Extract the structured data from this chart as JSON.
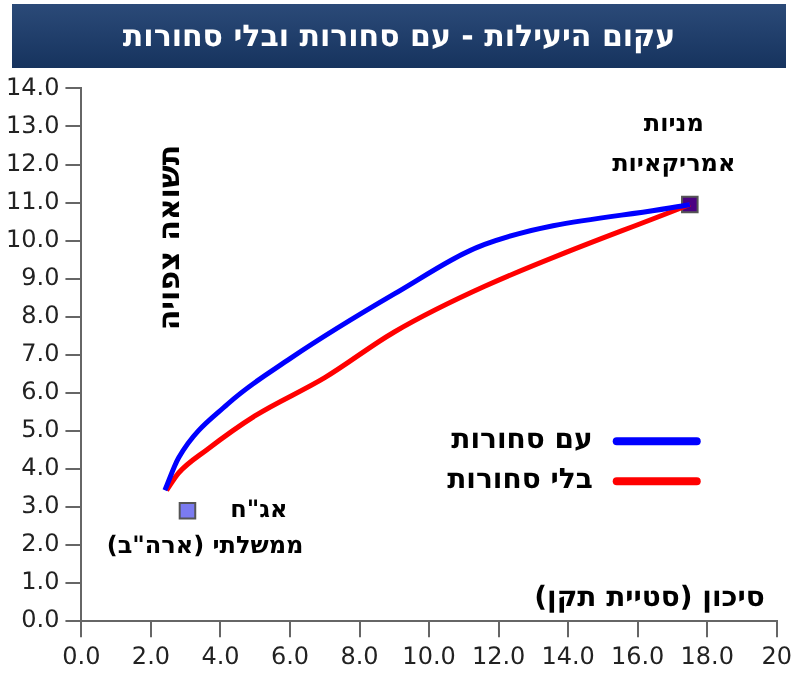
{
  "chart_data": {
    "type": "line",
    "title": "עקום היעילות - עם סחורות ובלי סחורות",
    "xlabel": "סיכון (סטיית תקן)",
    "ylabel": "תשואה צפויה",
    "xlim": [
      0,
      20
    ],
    "xticks": [
      {
        "value": 0,
        "label": "0.0"
      },
      {
        "value": 2,
        "label": "2.0"
      },
      {
        "value": 4,
        "label": "4.0"
      },
      {
        "value": 6,
        "label": "6.0"
      },
      {
        "value": 8,
        "label": "8.0"
      },
      {
        "value": 10,
        "label": "10.0"
      },
      {
        "value": 12,
        "label": "12.0"
      },
      {
        "value": 14,
        "label": "14.0"
      },
      {
        "value": 16,
        "label": "16.0"
      },
      {
        "value": 18,
        "label": "18.0"
      },
      20
    ],
    "ylim": [
      0,
      14
    ],
    "yticks": [
      {
        "value": 0,
        "label": "0.0"
      },
      {
        "value": 1,
        "label": "1.0"
      },
      {
        "value": 2,
        "label": "2.0"
      },
      {
        "value": 3,
        "label": "3.0"
      },
      {
        "value": 4,
        "label": "4.0"
      },
      {
        "value": 5,
        "label": "5.0"
      },
      {
        "value": 6,
        "label": "6.0"
      },
      {
        "value": 7,
        "label": "7.0"
      },
      {
        "value": 8,
        "label": "8.0"
      },
      {
        "value": 9,
        "label": "9.0"
      },
      {
        "value": 10,
        "label": "10.0"
      },
      {
        "value": 11,
        "label": "11.0"
      },
      {
        "value": 12,
        "label": "12.0"
      },
      {
        "value": 13,
        "label": "13.0"
      },
      {
        "value": 14,
        "label": "14.0"
      }
    ],
    "grid": false,
    "legend": "bottom right",
    "marker": "none",
    "line_style": "solid",
    "series": [
      {
        "name": "עם סחורות",
        "color": "#0000ff",
        "x": [
          2.4,
          2.8,
          4.2,
          6.0,
          9.0,
          11.6,
          17.5
        ],
        "values": [
          3.44,
          4.3,
          5.7,
          6.9,
          8.6,
          9.9,
          10.95
        ]
      },
      {
        "name": "בלי סחורות",
        "color": "#ff0000",
        "x": [
          2.45,
          2.8,
          3.6,
          5.0,
          7.0,
          9.0,
          11.6,
          17.5
        ],
        "values": [
          3.44,
          3.9,
          4.5,
          5.4,
          6.4,
          7.6,
          8.8,
          10.95
        ]
      },
      {
        "name": "מניות אמריקאיות",
        "type": "scatter",
        "marker": "square",
        "color": "#4b0082",
        "x": [
          17.5
        ],
        "values": [
          10.95
        ]
      },
      {
        "name": "אג\"ח ממשלתי (ארה\"ב)",
        "type": "scatter",
        "marker": "square",
        "color": "#7b7bf0",
        "x": [
          3.05
        ],
        "values": [
          2.9
        ]
      }
    ]
  }
}
